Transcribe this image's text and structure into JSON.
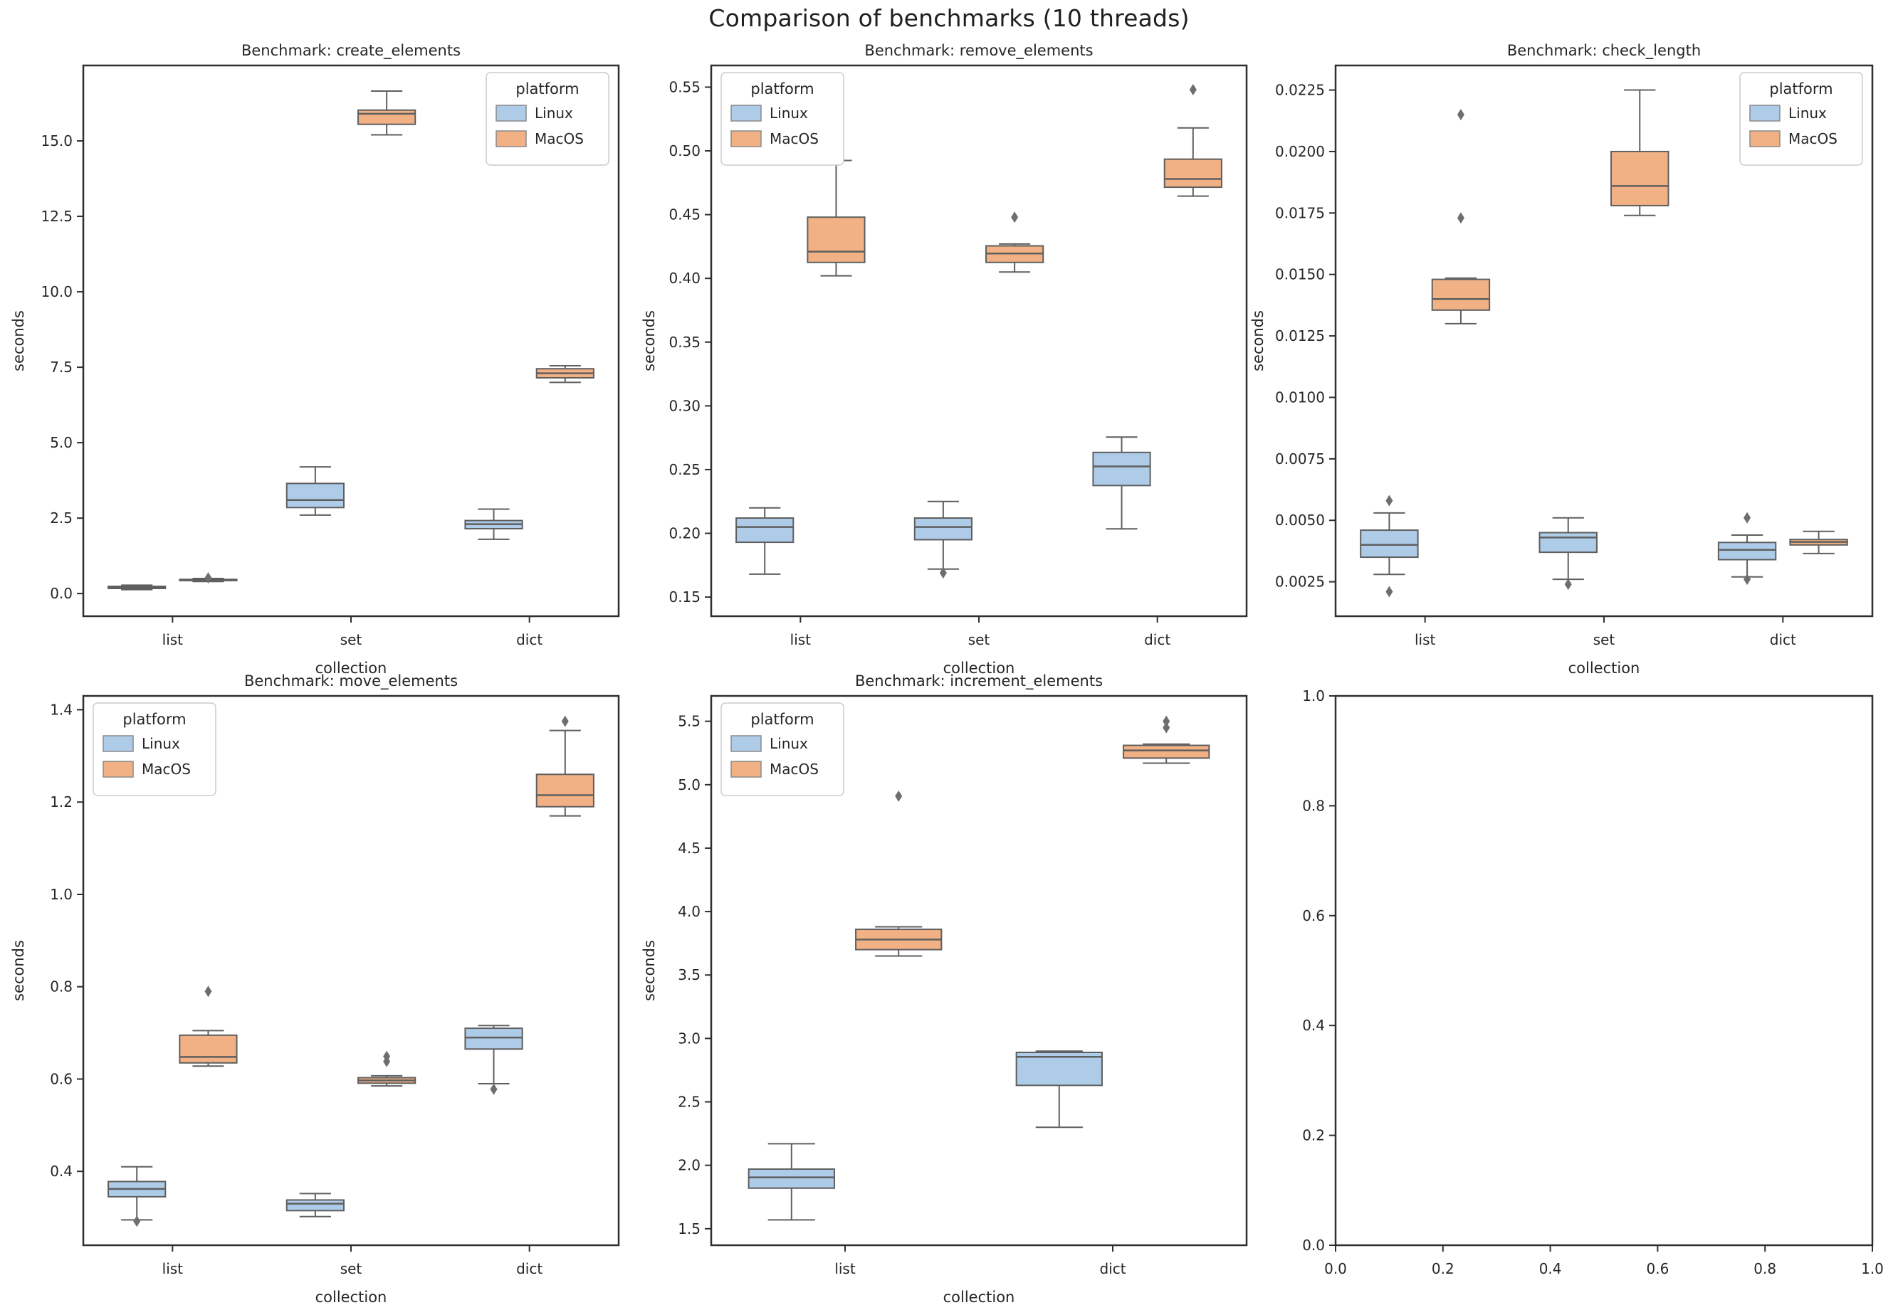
{
  "chart_data": {
    "type": "box",
    "figure_title": "Comparison of benchmarks (10 threads)",
    "palette": {
      "Linux": "#aecbe8",
      "MacOS": "#f2b184"
    },
    "style": {
      "box_edge": "#5f5f5f",
      "outlier": "#6e6e6e",
      "spine": "#2e2e2e",
      "text": "#262626",
      "legend_border": "#cccccc",
      "background": "#ffffff"
    },
    "subplots": [
      {
        "id": "create_elements",
        "title": "Benchmark: create_elements",
        "xlabel": "collection",
        "ylabel": "seconds",
        "categories": [
          "list",
          "set",
          "dict"
        ],
        "ylim": [
          -0.75,
          17.5
        ],
        "yticks": {
          "values": [
            0,
            2.5,
            5,
            7.5,
            10,
            12.5,
            15
          ],
          "labels": [
            "0.0",
            "2.5",
            "5.0",
            "7.5",
            "10.0",
            "12.5",
            "15.0"
          ]
        },
        "legend": {
          "title": "platform",
          "position": "top-right",
          "labels": [
            "Linux",
            "MacOS"
          ]
        },
        "series": [
          {
            "name": "Linux",
            "boxes": [
              {
                "category": "list",
                "whislo": 0.13,
                "q1": 0.17,
                "med": 0.21,
                "q3": 0.24,
                "whishi": 0.28,
                "outliers": []
              },
              {
                "category": "set",
                "whislo": 2.6,
                "q1": 2.85,
                "med": 3.1,
                "q3": 3.65,
                "whishi": 4.2,
                "outliers": []
              },
              {
                "category": "dict",
                "whislo": 1.8,
                "q1": 2.15,
                "med": 2.3,
                "q3": 2.42,
                "whishi": 2.8,
                "outliers": []
              }
            ]
          },
          {
            "name": "MacOS",
            "boxes": [
              {
                "category": "list",
                "whislo": 0.4,
                "q1": 0.43,
                "med": 0.45,
                "q3": 0.47,
                "whishi": 0.5,
                "outliers": [
                  0.52
                ]
              },
              {
                "category": "set",
                "whislo": 15.2,
                "q1": 15.55,
                "med": 15.9,
                "q3": 16.02,
                "whishi": 16.65,
                "outliers": []
              },
              {
                "category": "dict",
                "whislo": 7.0,
                "q1": 7.15,
                "med": 7.3,
                "q3": 7.45,
                "whishi": 7.55,
                "outliers": []
              }
            ]
          }
        ]
      },
      {
        "id": "remove_elements",
        "title": "Benchmark: remove_elements",
        "xlabel": "collection",
        "ylabel": "seconds",
        "categories": [
          "list",
          "set",
          "dict"
        ],
        "ylim": [
          0.135,
          0.567
        ],
        "yticks": {
          "values": [
            0.15,
            0.2,
            0.25,
            0.3,
            0.35,
            0.4,
            0.45,
            0.5,
            0.55
          ],
          "labels": [
            "0.15",
            "0.20",
            "0.25",
            "0.30",
            "0.35",
            "0.40",
            "0.45",
            "0.50",
            "0.55"
          ]
        },
        "legend": {
          "title": "platform",
          "position": "top-left",
          "labels": [
            "Linux",
            "MacOS"
          ]
        },
        "series": [
          {
            "name": "Linux",
            "boxes": [
              {
                "category": "list",
                "whislo": 0.168,
                "q1": 0.193,
                "med": 0.205,
                "q3": 0.212,
                "whishi": 0.22,
                "outliers": []
              },
              {
                "category": "set",
                "whislo": 0.172,
                "q1": 0.195,
                "med": 0.205,
                "q3": 0.212,
                "whishi": 0.225,
                "outliers": [
                  0.169
                ]
              },
              {
                "category": "dict",
                "whislo": 0.2035,
                "q1": 0.2375,
                "med": 0.2525,
                "q3": 0.2635,
                "whishi": 0.2755,
                "outliers": []
              }
            ]
          },
          {
            "name": "MacOS",
            "boxes": [
              {
                "category": "list",
                "whislo": 0.402,
                "q1": 0.4125,
                "med": 0.421,
                "q3": 0.448,
                "whishi": 0.4925,
                "outliers": []
              },
              {
                "category": "set",
                "whislo": 0.405,
                "q1": 0.4125,
                "med": 0.4195,
                "q3": 0.4255,
                "whishi": 0.427,
                "outliers": [
                  0.448
                ]
              },
              {
                "category": "dict",
                "whislo": 0.4645,
                "q1": 0.4715,
                "med": 0.478,
                "q3": 0.4935,
                "whishi": 0.518,
                "outliers": [
                  0.548
                ]
              }
            ]
          }
        ]
      },
      {
        "id": "check_length",
        "title": "Benchmark: check_length",
        "xlabel": "collection",
        "ylabel": "seconds",
        "categories": [
          "list",
          "set",
          "dict"
        ],
        "ylim": [
          0.0011,
          0.0235
        ],
        "yticks": {
          "values": [
            0.0025,
            0.005,
            0.0075,
            0.01,
            0.0125,
            0.015,
            0.0175,
            0.02,
            0.0225
          ],
          "labels": [
            "0.0025",
            "0.0050",
            "0.0075",
            "0.0100",
            "0.0125",
            "0.0150",
            "0.0175",
            "0.0200",
            "0.0225"
          ]
        },
        "legend": {
          "title": "platform",
          "position": "top-right",
          "labels": [
            "Linux",
            "MacOS"
          ]
        },
        "series": [
          {
            "name": "Linux",
            "boxes": [
              {
                "category": "list",
                "whislo": 0.0028,
                "q1": 0.0035,
                "med": 0.004,
                "q3": 0.0046,
                "whishi": 0.0053,
                "outliers": [
                  0.0058,
                  0.0021
                ]
              },
              {
                "category": "set",
                "whislo": 0.0026,
                "q1": 0.0037,
                "med": 0.0043,
                "q3": 0.0045,
                "whishi": 0.0051,
                "outliers": [
                  0.0024
                ]
              },
              {
                "category": "dict",
                "whislo": 0.0027,
                "q1": 0.0034,
                "med": 0.0038,
                "q3": 0.0041,
                "whishi": 0.0044,
                "outliers": [
                  0.0051,
                  0.0026
                ]
              }
            ]
          },
          {
            "name": "MacOS",
            "boxes": [
              {
                "category": "list",
                "whislo": 0.013,
                "q1": 0.01355,
                "med": 0.014,
                "q3": 0.0148,
                "whishi": 0.01485,
                "outliers": [
                  0.0215,
                  0.0173
                ]
              },
              {
                "category": "set",
                "whislo": 0.0174,
                "q1": 0.0178,
                "med": 0.0186,
                "q3": 0.02,
                "whishi": 0.0225,
                "outliers": []
              },
              {
                "category": "dict",
                "whislo": 0.00365,
                "q1": 0.004,
                "med": 0.00412,
                "q3": 0.00422,
                "whishi": 0.00455,
                "outliers": []
              }
            ]
          }
        ]
      },
      {
        "id": "move_elements",
        "title": "Benchmark: move_elements",
        "xlabel": "collection",
        "ylabel": "seconds",
        "categories": [
          "list",
          "set",
          "dict"
        ],
        "ylim": [
          0.24,
          1.43
        ],
        "yticks": {
          "values": [
            0.4,
            0.6,
            0.8,
            1.0,
            1.2,
            1.4
          ],
          "labels": [
            "0.4",
            "0.6",
            "0.8",
            "1.0",
            "1.2",
            "1.4"
          ]
        },
        "legend": {
          "title": "platform",
          "position": "top-left",
          "labels": [
            "Linux",
            "MacOS"
          ]
        },
        "series": [
          {
            "name": "Linux",
            "boxes": [
              {
                "category": "list",
                "whislo": 0.295,
                "q1": 0.345,
                "med": 0.362,
                "q3": 0.378,
                "whishi": 0.41,
                "outliers": [
                  0.292
                ]
              },
              {
                "category": "set",
                "whislo": 0.302,
                "q1": 0.315,
                "med": 0.33,
                "q3": 0.338,
                "whishi": 0.352,
                "outliers": []
              },
              {
                "category": "dict",
                "whislo": 0.59,
                "q1": 0.665,
                "med": 0.69,
                "q3": 0.71,
                "whishi": 0.716,
                "outliers": [
                  0.578
                ]
              }
            ]
          },
          {
            "name": "MacOS",
            "boxes": [
              {
                "category": "list",
                "whislo": 0.628,
                "q1": 0.635,
                "med": 0.648,
                "q3": 0.695,
                "whishi": 0.705,
                "outliers": [
                  0.79
                ]
              },
              {
                "category": "set",
                "whislo": 0.585,
                "q1": 0.591,
                "med": 0.597,
                "q3": 0.603,
                "whishi": 0.607,
                "outliers": [
                  0.638,
                  0.649
                ]
              },
              {
                "category": "dict",
                "whislo": 1.17,
                "q1": 1.19,
                "med": 1.215,
                "q3": 1.26,
                "whishi": 1.355,
                "outliers": [
                  1.375
                ]
              }
            ]
          }
        ]
      },
      {
        "id": "increment_elements",
        "title": "Benchmark: increment_elements",
        "xlabel": "collection",
        "ylabel": "seconds",
        "categories": [
          "list",
          "dict"
        ],
        "ylim": [
          1.37,
          5.7
        ],
        "yticks": {
          "values": [
            1.5,
            2.0,
            2.5,
            3.0,
            3.5,
            4.0,
            4.5,
            5.0,
            5.5
          ],
          "labels": [
            "1.5",
            "2.0",
            "2.5",
            "3.0",
            "3.5",
            "4.0",
            "4.5",
            "5.0",
            "5.5"
          ]
        },
        "legend": {
          "title": "platform",
          "position": "top-left",
          "labels": [
            "Linux",
            "MacOS"
          ]
        },
        "series": [
          {
            "name": "Linux",
            "boxes": [
              {
                "category": "list",
                "whislo": 1.57,
                "q1": 1.82,
                "med": 1.905,
                "q3": 1.97,
                "whishi": 2.17,
                "outliers": []
              },
              {
                "category": "dict",
                "whislo": 2.3,
                "q1": 2.63,
                "med": 2.855,
                "q3": 2.89,
                "whishi": 2.9,
                "outliers": []
              }
            ]
          },
          {
            "name": "MacOS",
            "boxes": [
              {
                "category": "list",
                "whislo": 3.65,
                "q1": 3.7,
                "med": 3.78,
                "q3": 3.86,
                "whishi": 3.88,
                "outliers": [
                  4.91
                ]
              },
              {
                "category": "dict",
                "whislo": 5.17,
                "q1": 5.21,
                "med": 5.27,
                "q3": 5.31,
                "whishi": 5.32,
                "outliers": [
                  5.45,
                  5.5
                ]
              }
            ]
          }
        ]
      },
      {
        "id": "empty",
        "title": null,
        "xlabel": null,
        "ylabel": null,
        "categories": null,
        "xlim": [
          0,
          1
        ],
        "ylim": [
          0,
          1
        ],
        "xticks": {
          "values": [
            0.0,
            0.2,
            0.4,
            0.6,
            0.8,
            1.0
          ],
          "labels": [
            "0.0",
            "0.2",
            "0.4",
            "0.6",
            "0.8",
            "1.0"
          ]
        },
        "yticks": {
          "values": [
            0.0,
            0.2,
            0.4,
            0.6,
            0.8,
            1.0
          ],
          "labels": [
            "0.0",
            "0.2",
            "0.4",
            "0.6",
            "0.8",
            "1.0"
          ]
        },
        "legend": null,
        "series": []
      }
    ]
  }
}
